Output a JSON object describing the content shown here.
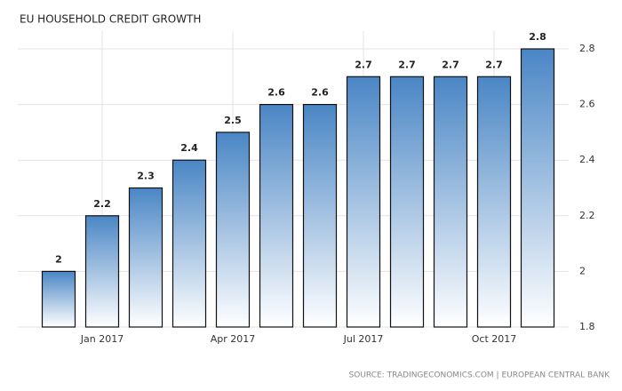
{
  "chart_data": {
    "type": "bar",
    "title": "EU HOUSEHOLD CREDIT GROWTH",
    "source": "SOURCE: TRADINGECONOMICS.COM | EUROPEAN CENTRAL BANK",
    "categories": [
      null,
      "Jan 2017",
      null,
      null,
      "Apr 2017",
      null,
      null,
      "Jul 2017",
      null,
      null,
      "Oct 2017",
      null
    ],
    "values": [
      2,
      2.2,
      2.3,
      2.4,
      2.5,
      2.6,
      2.6,
      2.7,
      2.7,
      2.7,
      2.7,
      2.8
    ],
    "color": "#4a86c5",
    "ylim": [
      1.8,
      2.8
    ],
    "yticks": [
      1.8,
      2,
      2.2,
      2.4,
      2.6,
      2.8
    ],
    "grid": true
  }
}
